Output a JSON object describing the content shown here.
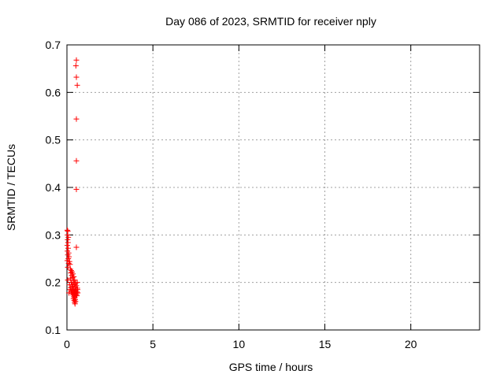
{
  "chart_data": {
    "type": "scatter",
    "title": "Day 086 of 2023, SRMTID for receiver nply",
    "xlabel": "GPS time / hours",
    "ylabel": "SRMTID / TECUs",
    "xlim": [
      0,
      24
    ],
    "ylim": [
      0.1,
      0.7
    ],
    "xticks": [
      0,
      5,
      10,
      15,
      20
    ],
    "xtick_labels": [
      "0",
      "5",
      "10",
      "15",
      "20"
    ],
    "yticks": [
      0.1,
      0.2,
      0.3,
      0.4,
      0.5,
      0.6,
      0.7
    ],
    "ytick_labels": [
      "0.1",
      "0.2",
      "0.3",
      "0.4",
      "0.5",
      "0.6",
      "0.7"
    ],
    "grid": true,
    "marker": "+",
    "series": [
      {
        "name": "SRMTID",
        "color": "#ff0000",
        "points": [
          [
            0.55,
            0.668
          ],
          [
            0.52,
            0.656
          ],
          [
            0.55,
            0.632
          ],
          [
            0.6,
            0.615
          ],
          [
            0.55,
            0.544
          ],
          [
            0.55,
            0.456
          ],
          [
            0.55,
            0.396
          ],
          [
            0.55,
            0.274
          ],
          [
            0.02,
            0.31
          ],
          [
            0.05,
            0.308
          ],
          [
            0.03,
            0.3
          ],
          [
            0.08,
            0.295
          ],
          [
            0.04,
            0.29
          ],
          [
            0.06,
            0.284
          ],
          [
            0.02,
            0.278
          ],
          [
            0.07,
            0.272
          ],
          [
            0.03,
            0.266
          ],
          [
            0.1,
            0.262
          ],
          [
            0.05,
            0.258
          ],
          [
            0.12,
            0.254
          ],
          [
            0.08,
            0.25
          ],
          [
            0.02,
            0.246
          ],
          [
            0.15,
            0.244
          ],
          [
            0.1,
            0.24
          ],
          [
            0.18,
            0.238
          ],
          [
            0.05,
            0.232
          ],
          [
            0.2,
            0.228
          ],
          [
            0.25,
            0.225
          ],
          [
            0.3,
            0.222
          ],
          [
            0.22,
            0.22
          ],
          [
            0.35,
            0.218
          ],
          [
            0.28,
            0.215
          ],
          [
            0.4,
            0.212
          ],
          [
            0.32,
            0.21
          ],
          [
            0.2,
            0.208
          ],
          [
            0.45,
            0.205
          ],
          [
            0.38,
            0.203
          ],
          [
            0.25,
            0.2
          ],
          [
            0.5,
            0.198
          ],
          [
            0.42,
            0.196
          ],
          [
            0.3,
            0.195
          ],
          [
            0.55,
            0.193
          ],
          [
            0.35,
            0.192
          ],
          [
            0.47,
            0.19
          ],
          [
            0.22,
            0.189
          ],
          [
            0.6,
            0.188
          ],
          [
            0.4,
            0.186
          ],
          [
            0.28,
            0.185
          ],
          [
            0.52,
            0.184
          ],
          [
            0.33,
            0.183
          ],
          [
            0.45,
            0.182
          ],
          [
            0.25,
            0.181
          ],
          [
            0.58,
            0.18
          ],
          [
            0.38,
            0.179
          ],
          [
            0.48,
            0.178
          ],
          [
            0.3,
            0.177
          ],
          [
            0.42,
            0.176
          ],
          [
            0.55,
            0.175
          ],
          [
            0.35,
            0.174
          ],
          [
            0.5,
            0.172
          ],
          [
            0.4,
            0.17
          ],
          [
            0.45,
            0.168
          ],
          [
            0.38,
            0.166
          ],
          [
            0.48,
            0.164
          ],
          [
            0.42,
            0.162
          ],
          [
            0.5,
            0.16
          ],
          [
            0.45,
            0.158
          ],
          [
            0.47,
            0.155
          ],
          [
            0.05,
            0.205
          ],
          [
            0.15,
            0.195
          ],
          [
            0.18,
            0.185
          ],
          [
            0.12,
            0.178
          ],
          [
            0.6,
            0.2
          ],
          [
            0.62,
            0.185
          ],
          [
            0.58,
            0.172
          ],
          [
            0.63,
            0.178
          ]
        ]
      }
    ]
  }
}
